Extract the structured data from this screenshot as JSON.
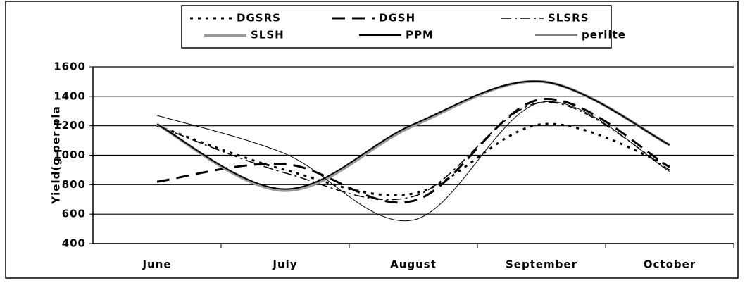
{
  "chart_data": {
    "type": "line",
    "y_label": "Yield(g per pla",
    "categories": [
      "June",
      "July",
      "August",
      "September",
      "October"
    ],
    "series": [
      {
        "name": "DGSRS",
        "color": "#000000",
        "dash": "4,7",
        "width": 3,
        "values": [
          1200,
          900,
          740,
          1210,
          930
        ]
      },
      {
        "name": "DGSH",
        "color": "#000000",
        "dash": "18,10",
        "width": 3,
        "values": [
          820,
          940,
          690,
          1380,
          920
        ]
      },
      {
        "name": "SLSRS",
        "color": "#000000",
        "dash": "14,5,3,5",
        "width": 1.5,
        "values": [
          1200,
          880,
          720,
          1360,
          900
        ]
      },
      {
        "name": "SLSH",
        "color": "#9a9a9a",
        "dash": "none",
        "width": 4,
        "values": [
          1210,
          760,
          1200,
          1500,
          1070
        ]
      },
      {
        "name": "PPM",
        "color": "#000000",
        "dash": "none",
        "width": 2,
        "values": [
          1210,
          770,
          1210,
          1500,
          1070
        ]
      },
      {
        "name": "perlite",
        "color": "#000000",
        "dash": "none",
        "width": 1,
        "values": [
          1270,
          1010,
          560,
          1360,
          890
        ]
      }
    ],
    "ylim": [
      400,
      1600
    ],
    "yticks": [
      400,
      600,
      800,
      1000,
      1200,
      1400,
      1600
    ],
    "grid": true
  }
}
